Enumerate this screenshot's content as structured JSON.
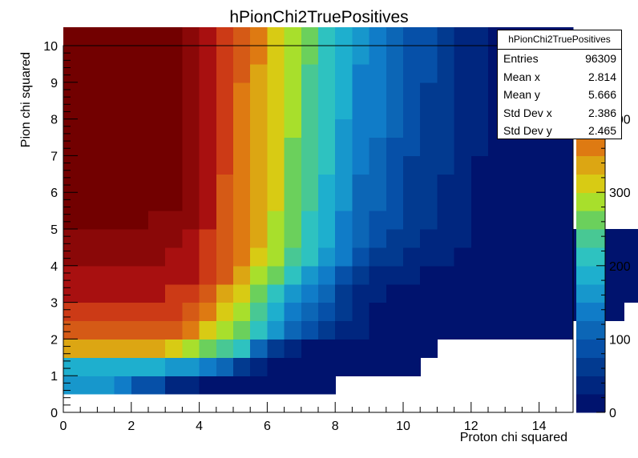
{
  "chart_data": {
    "type": "heatmap",
    "title": "hPionChi2TruePositives",
    "xlabel": "Proton chi squared",
    "ylabel": "Pion chi squared",
    "xlim": [
      0,
      15
    ],
    "ylim": [
      0,
      10
    ],
    "x_ticks": [
      "0",
      "2",
      "4",
      "6",
      "8",
      "10",
      "12",
      "14"
    ],
    "y_ticks": [
      "0",
      "1",
      "2",
      "3",
      "4",
      "5",
      "6",
      "7",
      "8",
      "9",
      "10"
    ],
    "x_bin_width": 0.5,
    "y_bin_width": 0.5,
    "z_range": [
      0,
      500
    ],
    "z_ticks": [
      "0",
      "100",
      "200",
      "300",
      "400"
    ],
    "colormap": [
      "#00136e",
      "#00267f",
      "#023a90",
      "#0650a8",
      "#0c66b6",
      "#107cc8",
      "#1797cc",
      "#1eafce",
      "#2ec2c0",
      "#48c894",
      "#6bd05c",
      "#a8df2c",
      "#d8cb14",
      "#dca613",
      "#de7a12",
      "#d55a16",
      "#cc3a16",
      "#a81010",
      "#8a0808",
      "#720000"
    ],
    "rows": [
      [],
      [
        6,
        6,
        6,
        5,
        3,
        3,
        1,
        1,
        0,
        0,
        0,
        0,
        0,
        0,
        0,
        0
      ],
      [
        7,
        7,
        7,
        7,
        7,
        7,
        6,
        6,
        5,
        4,
        2,
        1,
        0,
        0,
        0,
        0,
        0,
        0,
        0,
        0,
        0
      ],
      [
        13,
        13,
        13,
        13,
        13,
        13,
        12,
        11,
        10,
        9,
        8,
        4,
        2,
        1,
        0,
        0,
        0,
        0,
        0,
        0,
        0,
        0
      ],
      [
        15,
        15,
        15,
        15,
        15,
        15,
        15,
        14,
        12,
        11,
        10,
        8,
        6,
        4,
        3,
        2,
        1,
        1,
        0,
        0,
        0,
        0,
        0,
        0,
        0,
        0,
        0,
        0,
        0,
        0
      ],
      [
        16,
        16,
        16,
        16,
        16,
        16,
        16,
        15,
        14,
        12,
        11,
        9,
        7,
        5,
        4,
        3,
        2,
        1,
        0,
        0,
        0,
        0,
        0,
        0,
        0,
        0,
        0,
        0,
        0,
        0,
        0,
        0,
        0
      ],
      [
        17,
        17,
        17,
        17,
        17,
        17,
        16,
        16,
        15,
        13,
        12,
        10,
        8,
        6,
        5,
        4,
        2,
        1,
        1,
        0,
        0,
        0,
        0,
        0,
        0,
        0,
        0,
        0,
        0,
        0,
        0,
        0,
        0,
        0,
        0,
        0
      ],
      [
        17,
        17,
        17,
        17,
        17,
        17,
        17,
        17,
        16,
        15,
        13,
        11,
        10,
        8,
        6,
        5,
        3,
        2,
        1,
        1,
        1,
        0,
        0,
        0,
        0,
        0,
        0,
        0,
        0,
        0,
        0,
        0,
        0,
        0,
        0,
        0,
        0,
        0,
        0,
        0,
        0,
        0,
        0,
        0
      ],
      [
        18,
        18,
        18,
        18,
        18,
        18,
        17,
        17,
        16,
        15,
        14,
        12,
        11,
        9,
        8,
        6,
        5,
        3,
        2,
        2,
        1,
        1,
        1,
        0,
        0,
        0,
        0,
        0,
        0,
        0,
        0,
        0,
        0,
        0,
        0,
        0,
        0,
        0,
        0,
        0,
        0,
        0,
        0,
        0,
        0,
        0,
        0,
        0,
        0,
        0,
        0,
        0,
        0,
        0,
        0
      ],
      [
        18,
        18,
        18,
        18,
        18,
        18,
        18,
        17,
        16,
        15,
        14,
        13,
        11,
        10,
        8,
        7,
        5,
        4,
        3,
        2,
        2,
        1,
        1,
        1,
        0,
        0,
        0,
        0,
        0,
        0,
        0,
        0,
        0,
        0,
        0,
        0,
        0,
        0,
        0,
        0,
        0,
        0,
        0,
        0,
        0,
        0,
        0,
        0,
        0,
        0,
        0,
        0,
        0,
        0,
        0,
        0,
        0,
        0,
        0,
        0,
        0
      ],
      [
        19,
        19,
        19,
        19,
        19,
        18,
        18,
        18,
        17,
        15,
        14,
        13,
        11,
        10,
        8,
        7,
        5,
        4,
        3,
        3,
        2,
        2,
        1,
        1,
        0,
        0,
        0,
        0,
        0,
        0
      ],
      [
        19,
        19,
        19,
        19,
        19,
        19,
        19,
        18,
        17,
        15,
        14,
        13,
        12,
        10,
        9,
        7,
        6,
        4,
        4,
        3,
        2,
        2,
        1,
        1,
        0,
        0,
        0,
        0,
        0,
        0
      ],
      [
        19,
        19,
        19,
        19,
        19,
        19,
        19,
        18,
        17,
        15,
        14,
        13,
        12,
        10,
        9,
        7,
        6,
        4,
        4,
        3,
        2,
        2,
        1,
        1,
        0,
        0,
        0,
        0,
        0,
        0
      ],
      [
        19,
        19,
        19,
        19,
        19,
        19,
        19,
        18,
        17,
        16,
        14,
        13,
        12,
        10,
        9,
        8,
        6,
        5,
        4,
        3,
        2,
        2,
        2,
        1,
        0,
        0,
        0,
        0,
        0,
        0
      ],
      [
        19,
        19,
        19,
        19,
        19,
        19,
        19,
        18,
        17,
        16,
        14,
        13,
        12,
        10,
        9,
        8,
        6,
        5,
        4,
        3,
        3,
        2,
        2,
        1,
        1,
        0,
        0,
        0,
        0,
        0
      ],
      [
        19,
        19,
        19,
        19,
        19,
        19,
        19,
        18,
        17,
        16,
        14,
        13,
        12,
        11,
        9,
        8,
        6,
        5,
        5,
        4,
        3,
        2,
        2,
        1,
        1,
        0,
        0,
        0,
        0,
        0
      ],
      [
        19,
        19,
        19,
        19,
        19,
        19,
        19,
        18,
        17,
        16,
        14,
        13,
        12,
        11,
        9,
        8,
        7,
        5,
        5,
        4,
        3,
        2,
        2,
        1,
        1,
        0,
        0,
        0,
        0,
        0
      ],
      [
        19,
        19,
        19,
        19,
        19,
        19,
        19,
        18,
        17,
        16,
        14,
        13,
        12,
        11,
        9,
        8,
        7,
        5,
        5,
        4,
        3,
        2,
        2,
        1,
        1,
        0,
        0,
        0,
        0,
        0
      ],
      [
        19,
        19,
        19,
        19,
        19,
        19,
        19,
        18,
        17,
        16,
        15,
        13,
        12,
        11,
        9,
        8,
        7,
        5,
        5,
        4,
        3,
        3,
        2,
        1,
        1,
        0,
        0,
        0,
        0,
        0
      ],
      [
        19,
        19,
        19,
        19,
        19,
        19,
        19,
        18,
        17,
        16,
        15,
        14,
        12,
        11,
        10,
        8,
        7,
        6,
        5,
        4,
        3,
        3,
        2,
        1,
        1,
        0,
        0,
        0,
        0,
        0
      ],
      [
        19,
        19,
        19,
        19,
        19,
        19,
        19,
        18,
        17,
        16,
        15,
        14,
        12,
        11,
        10,
        8,
        7,
        6,
        5,
        4,
        3,
        3,
        2,
        1,
        1,
        0,
        0,
        0,
        0,
        0
      ]
    ],
    "stats": {
      "title": "hPionChi2TruePositives",
      "entries": {
        "label": "Entries",
        "value": "96309"
      },
      "mean_x": {
        "label": "Mean x",
        "value": "2.814"
      },
      "mean_y": {
        "label": "Mean y",
        "value": "5.666"
      },
      "std_x": {
        "label": "Std Dev x",
        "value": "2.386"
      },
      "std_y": {
        "label": "Std Dev y",
        "value": "2.465"
      }
    }
  }
}
